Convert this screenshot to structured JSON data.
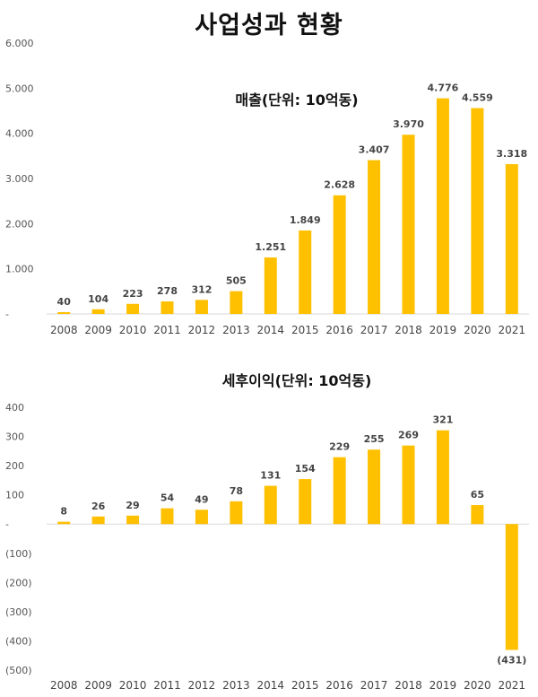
{
  "title": "사업성과 현황",
  "colors": {
    "bar": "#FFC000",
    "axis": "#d9d9d9"
  },
  "chart_data": [
    {
      "type": "bar",
      "title": "매출(단위: 10억동)",
      "categories": [
        "2008",
        "2009",
        "2010",
        "2011",
        "2012",
        "2013",
        "2014",
        "2015",
        "2016",
        "2017",
        "2018",
        "2019",
        "2020",
        "2021"
      ],
      "values": [
        40,
        104,
        223,
        278,
        312,
        505,
        1251,
        1849,
        2628,
        3407,
        3970,
        4776,
        4559,
        3318
      ],
      "data_labels": [
        "40",
        "104",
        "223",
        "278",
        "312",
        "505",
        "1.251",
        "1.849",
        "2.628",
        "3.407",
        "3.970",
        "4.776",
        "4.559",
        "3.318"
      ],
      "y_ticks": [
        0,
        1000,
        2000,
        3000,
        4000,
        5000,
        6000
      ],
      "y_tick_labels": [
        "-",
        "1.000",
        "2.000",
        "3.000",
        "4.000",
        "5.000",
        "6.000"
      ],
      "ylim": [
        0,
        6000
      ],
      "grid": false,
      "legend": "none"
    },
    {
      "type": "bar",
      "title": "세후이익(단위: 10억동)",
      "categories": [
        "2008",
        "2009",
        "2010",
        "2011",
        "2012",
        "2013",
        "2014",
        "2015",
        "2016",
        "2017",
        "2018",
        "2019",
        "2020",
        "2021"
      ],
      "values": [
        8,
        26,
        29,
        54,
        49,
        78,
        131,
        154,
        229,
        255,
        269,
        321,
        65,
        -431
      ],
      "data_labels": [
        "8",
        "26",
        "29",
        "54",
        "49",
        "78",
        "131",
        "154",
        "229",
        "255",
        "269",
        "321",
        "65",
        "(431)"
      ],
      "y_ticks": [
        -500,
        -400,
        -300,
        -200,
        -100,
        0,
        100,
        200,
        300,
        400
      ],
      "y_tick_labels": [
        "(500)",
        "(400)",
        "(300)",
        "(200)",
        "(100)",
        "-",
        "100",
        "200",
        "300",
        "400"
      ],
      "ylim": [
        -500,
        400
      ],
      "grid": false,
      "legend": "none"
    }
  ]
}
